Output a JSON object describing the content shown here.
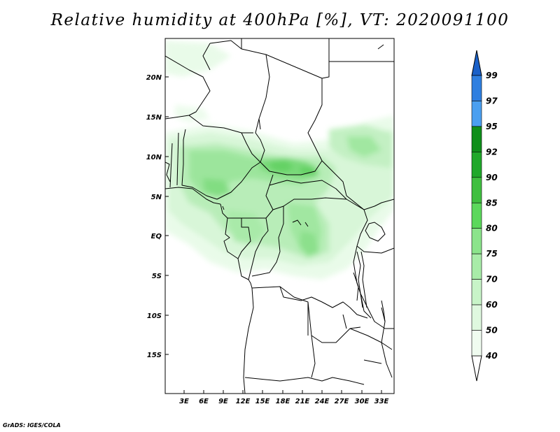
{
  "title": "Relative humidity at 400hPa [%], VT: 2020091100",
  "credit": "GrADS: IGES/COLA",
  "map": {
    "lat_labels": [
      "20N",
      "15N",
      "10N",
      "5N",
      "EQ",
      "5S",
      "10S",
      "15S"
    ],
    "lon_labels": [
      "3E",
      "6E",
      "9E",
      "12E",
      "15E",
      "18E",
      "21E",
      "24E",
      "27E",
      "30E",
      "33E"
    ]
  },
  "colorbar": {
    "levels": [
      "99",
      "97",
      "95",
      "92",
      "90",
      "85",
      "80",
      "75",
      "70",
      "60",
      "50",
      "40"
    ],
    "colors": [
      "#1a60c8",
      "#2f7fe0",
      "#4a9ff0",
      "#0f8f1a",
      "#20a82a",
      "#3fbf3f",
      "#5cd85c",
      "#8be48b",
      "#a8eca8",
      "#c8f4c8",
      "#dff8df",
      "#f0fcf0"
    ]
  }
}
